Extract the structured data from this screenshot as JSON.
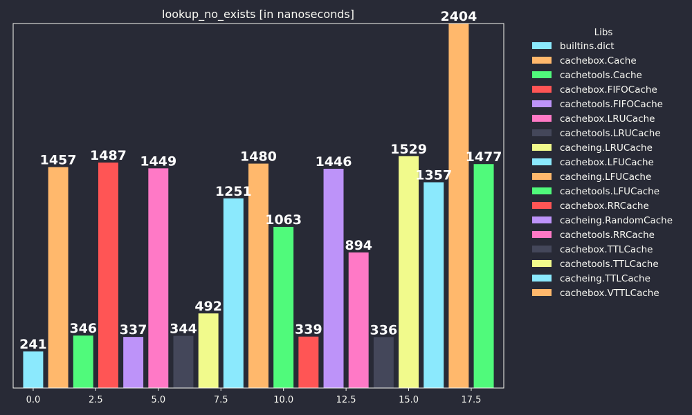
{
  "chart_data": {
    "type": "bar",
    "title": "lookup_no_exists [in nanoseconds]",
    "xlim": [
      -0.8,
      18.8
    ],
    "ylim": [
      0,
      2404
    ],
    "xticks": [
      0,
      2.5,
      5,
      7.5,
      10,
      12.5,
      15,
      17.5
    ],
    "xtick_labels": [
      "0.0",
      "2.5",
      "5.0",
      "7.5",
      "10.0",
      "12.5",
      "15.0",
      "17.5"
    ],
    "grid": false,
    "legend": {
      "title": "Libs",
      "placement": "right"
    },
    "series": [
      {
        "name": "builtins.dict",
        "x": 0,
        "value": 241,
        "color": "#8be9fd"
      },
      {
        "name": "cachebox.Cache",
        "x": 1,
        "value": 1457,
        "color": "#ffb86c"
      },
      {
        "name": "cachetools.Cache",
        "x": 2,
        "value": 346,
        "color": "#50fa7b"
      },
      {
        "name": "cachebox.FIFOCache",
        "x": 3,
        "value": 1487,
        "color": "#ff5555"
      },
      {
        "name": "cachetools.FIFOCache",
        "x": 4,
        "value": 337,
        "color": "#bd93f9"
      },
      {
        "name": "cachebox.LRUCache",
        "x": 5,
        "value": 1449,
        "color": "#ff79c6"
      },
      {
        "name": "cachetools.LRUCache",
        "x": 6,
        "value": 344,
        "color": "#44475a"
      },
      {
        "name": "cacheing.LRUCache",
        "x": 7,
        "value": 492,
        "color": "#f1fa8c"
      },
      {
        "name": "cachebox.LFUCache",
        "x": 8,
        "value": 1251,
        "color": "#8be9fd"
      },
      {
        "name": "cacheing.LFUCache",
        "x": 9,
        "value": 1480,
        "color": "#ffb86c"
      },
      {
        "name": "cachetools.LFUCache",
        "x": 10,
        "value": 1063,
        "color": "#50fa7b"
      },
      {
        "name": "cachebox.RRCache",
        "x": 11,
        "value": 339,
        "color": "#ff5555"
      },
      {
        "name": "cacheing.RandomCache",
        "x": 12,
        "value": 1446,
        "color": "#bd93f9"
      },
      {
        "name": "cachetools.RRCache",
        "x": 13,
        "value": 894,
        "color": "#ff79c6"
      },
      {
        "name": "cachebox.TTLCache",
        "x": 14,
        "value": 336,
        "color": "#44475a"
      },
      {
        "name": "cachetools.TTLCache",
        "x": 15,
        "value": 1529,
        "color": "#f1fa8c"
      },
      {
        "name": "cacheing.TTLCache",
        "x": 16,
        "value": 1357,
        "color": "#8be9fd"
      },
      {
        "name": "cachebox.VTTLCache",
        "x": 17,
        "value": 2404,
        "color": "#ffb86c"
      },
      {
        "name": "",
        "x": 18,
        "value": 1477,
        "color": "#50fa7b"
      }
    ]
  }
}
